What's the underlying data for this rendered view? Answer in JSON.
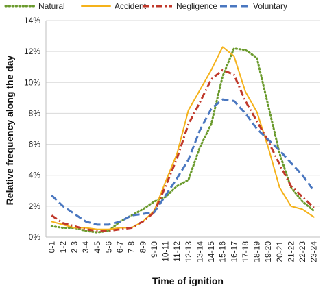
{
  "chart_data": {
    "type": "line",
    "xlabel": "Time of ignition",
    "ylabel": "Relative frequency  along the day",
    "ylim": [
      0,
      14
    ],
    "yticks": [
      "0%",
      "2%",
      "4%",
      "6%",
      "8%",
      "10%",
      "12%",
      "14%"
    ],
    "grid": "horizontal",
    "legend_position": "top",
    "categories": [
      "0-1",
      "1-2",
      "2-3",
      "3-4",
      "4-5",
      "5-6",
      "6-7",
      "7-8",
      "8-9",
      "9-10",
      "10-11",
      "11-12",
      "12-13",
      "13-14",
      "14-15",
      "15-16",
      "16-17",
      "17-18",
      "18-19",
      "19-20",
      "20-21",
      "21-22",
      "22-23",
      "23-24"
    ],
    "series": [
      {
        "name": "Natural",
        "color": "#6a9a2c",
        "dash": "dotted",
        "values": [
          0.7,
          0.6,
          0.6,
          0.4,
          0.3,
          0.4,
          1.0,
          1.4,
          1.8,
          2.3,
          2.6,
          3.3,
          3.7,
          5.8,
          7.3,
          10.4,
          12.2,
          12.1,
          11.6,
          8.5,
          5.4,
          3.2,
          2.3,
          1.7
        ]
      },
      {
        "name": "Accident",
        "color": "#f5b21a",
        "dash": "solid",
        "values": [
          1.0,
          0.8,
          0.6,
          0.6,
          0.5,
          0.5,
          0.6,
          0.6,
          1.0,
          1.7,
          3.6,
          5.4,
          8.2,
          9.5,
          10.8,
          12.3,
          11.7,
          9.4,
          8.1,
          5.8,
          3.2,
          2.0,
          1.8,
          1.3
        ]
      },
      {
        "name": "Negligence",
        "color": "#c0392b",
        "dash": "dashdot",
        "values": [
          1.4,
          0.9,
          0.7,
          0.5,
          0.4,
          0.4,
          0.5,
          0.6,
          1.0,
          1.6,
          3.3,
          5.1,
          7.3,
          8.7,
          10.2,
          10.8,
          10.5,
          8.8,
          7.5,
          6.2,
          4.7,
          3.3,
          2.6,
          1.9
        ]
      },
      {
        "name": "Voluntary",
        "color": "#4a77c0",
        "dash": "dashed",
        "values": [
          2.7,
          2.0,
          1.5,
          1.0,
          0.8,
          0.8,
          1.0,
          1.4,
          1.5,
          1.6,
          2.7,
          3.8,
          5.0,
          6.9,
          8.3,
          8.9,
          8.8,
          8.0,
          7.0,
          6.3,
          5.6,
          4.8,
          4.0,
          3.0
        ]
      }
    ]
  }
}
